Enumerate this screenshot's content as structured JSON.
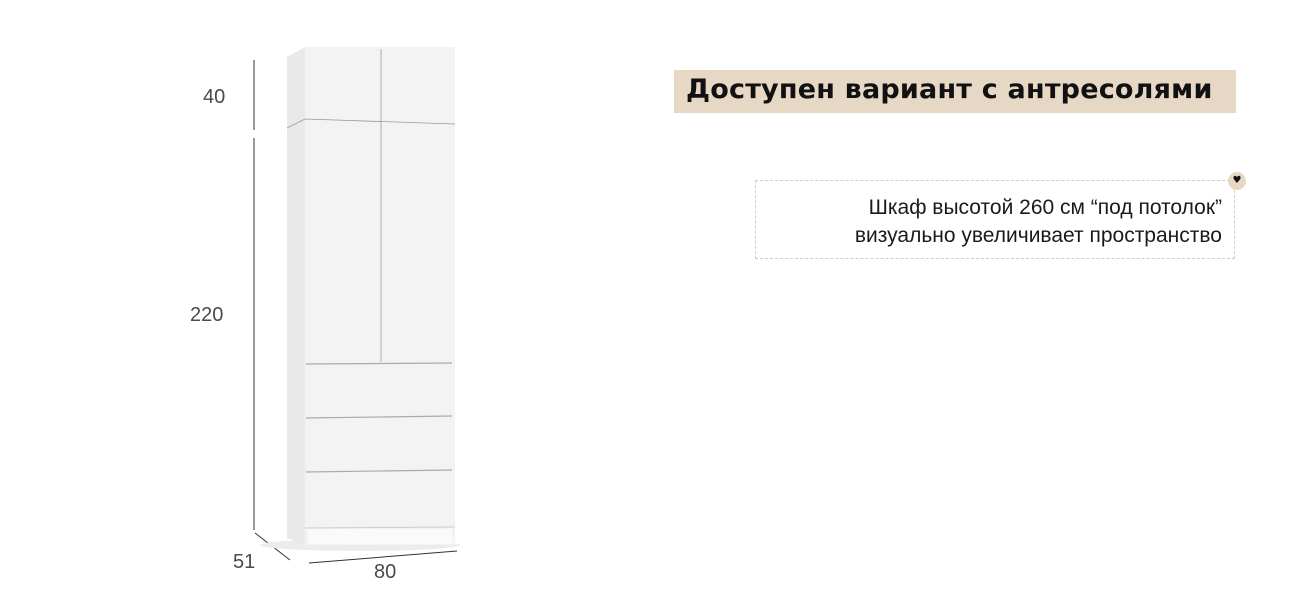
{
  "dimensions": {
    "mezzanine_height": "40",
    "main_height": "220",
    "depth": "51",
    "width": "80"
  },
  "banner": {
    "title": "Доступен вариант с антресолями",
    "color": "#e6d8c4"
  },
  "note": {
    "line1": "Шкаф высотой 260 см “под потолок”",
    "line2": "визуально увеличивает пространство",
    "icon": "heart-icon"
  }
}
